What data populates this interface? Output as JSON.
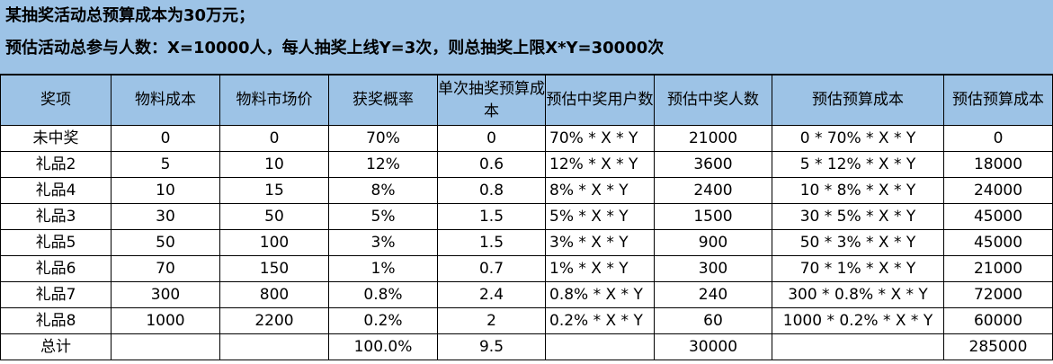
{
  "notes": {
    "line1": "某抽奖活动总预算成本为30万元；",
    "line2": "预估活动总参与人数：X=10000人，每人抽奖上线Y=3次，则总抽奖上限X*Y=30000次"
  },
  "table": {
    "headers": [
      "奖项",
      "物料成本",
      "物料市场价",
      "获奖概率",
      "单次抽奖预算成本",
      "预估中奖用户数",
      "预估中奖人数",
      "预估预算成本",
      "预估预算成本"
    ],
    "rows": [
      [
        "未中奖",
        "0",
        "0",
        "70%",
        "0",
        "70% * X * Y",
        "21000",
        "0 * 70% * X * Y",
        "0"
      ],
      [
        "礼品2",
        "5",
        "10",
        "12%",
        "0.6",
        "12% * X * Y",
        "3600",
        "5 * 12% * X * Y",
        "18000"
      ],
      [
        "礼品4",
        "10",
        "15",
        "8%",
        "0.8",
        "8% * X * Y",
        "2400",
        "10 * 8% * X * Y",
        "24000"
      ],
      [
        "礼品3",
        "30",
        "50",
        "5%",
        "1.5",
        "5% * X * Y",
        "1500",
        "30 * 5% * X * Y",
        "45000"
      ],
      [
        "礼品5",
        "50",
        "100",
        "3%",
        "1.5",
        "3% * X * Y",
        "900",
        "50 * 3% * X * Y",
        "45000"
      ],
      [
        "礼品6",
        "70",
        "150",
        "1%",
        "0.7",
        "1% * X * Y",
        "300",
        "70 * 1% * X * Y",
        "21000"
      ],
      [
        "礼品7",
        "300",
        "800",
        "0.8%",
        "2.4",
        "0.8% * X * Y",
        "240",
        "300 * 0.8% * X * Y",
        "72000"
      ],
      [
        "礼品8",
        "1000",
        "2200",
        "0.2%",
        "2",
        "0.2% * X * Y",
        "60",
        "1000 * 0.2% * X * Y",
        "60000"
      ],
      [
        "总计",
        "",
        "",
        "100.0%",
        "9.5",
        "",
        "30000",
        "",
        "285000"
      ]
    ]
  },
  "colors": {
    "header_bg": "#9dc3e6",
    "grid": "#000000"
  }
}
